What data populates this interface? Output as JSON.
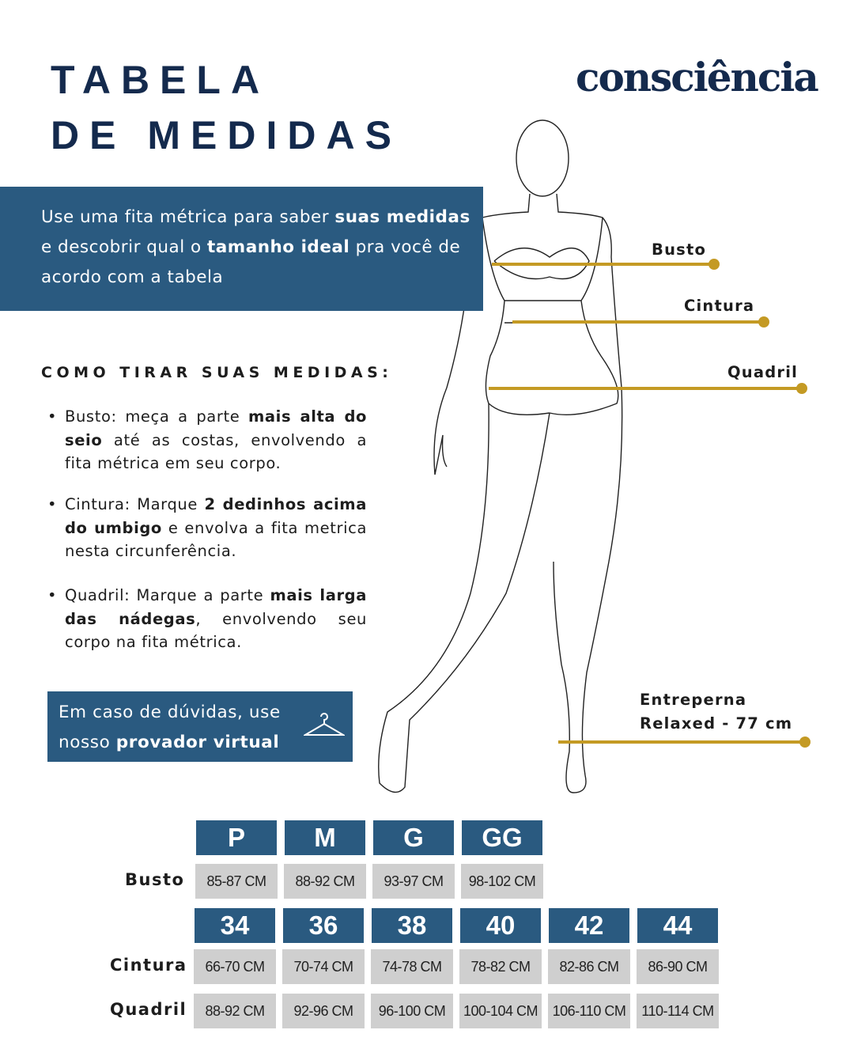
{
  "header": {
    "title_line1": "TABELA",
    "title_line2": "DE MEDIDAS",
    "logo": "consciência"
  },
  "intro": [
    {
      "t": "Use uma fita métrica para saber "
    },
    {
      "t": "suas medidas",
      "b": true
    },
    {
      "t": " e descobrir qual o "
    },
    {
      "t": "tamanho ideal",
      "b": true
    },
    {
      "t": " pra você de acordo com a tabela"
    }
  ],
  "howto": {
    "heading": "COMO TIRAR SUAS MEDIDAS:",
    "bullets": [
      [
        {
          "t": "Busto: meça a parte "
        },
        {
          "t": "mais alta do seio",
          "b": true
        },
        {
          "t": " até as costas, envolvendo a fita métrica em seu corpo."
        }
      ],
      [
        {
          "t": "Cintura: Marque "
        },
        {
          "t": "2 dedinhos acima do umbigo",
          "b": true
        },
        {
          "t": " e envolva a fita metrica nesta circunferência."
        }
      ],
      [
        {
          "t": "Quadril: Marque a parte "
        },
        {
          "t": "mais larga das nádegas",
          "b": true
        },
        {
          "t": ", envolvendo seu corpo na fita métrica."
        }
      ]
    ]
  },
  "help": [
    {
      "t": "Em caso de dúvidas, use nosso "
    },
    {
      "t": "provador virtual",
      "b": true
    }
  ],
  "help_icon": "hanger-icon",
  "figure": {
    "labels": {
      "busto": "Busto",
      "cintura": "Cintura",
      "quadril": "Quadril",
      "entreperna1": "Entreperna",
      "entreperna2": "Relaxed - 77 cm"
    }
  },
  "colors": {
    "brand_blue": "#2a5a80",
    "navy": "#142a4d",
    "gold": "#c49a24",
    "cell_gray": "#cfcfcf"
  },
  "table": {
    "busto": {
      "label": "Busto",
      "sizes": [
        "P",
        "M",
        "G",
        "GG"
      ],
      "values": [
        "85-87 CM",
        "88-92 CM",
        "93-97 CM",
        "98-102 CM"
      ]
    },
    "numeric_sizes": [
      "34",
      "36",
      "38",
      "40",
      "42",
      "44"
    ],
    "cintura": {
      "label": "Cintura",
      "values": [
        "66-70 CM",
        "70-74 CM",
        "74-78 CM",
        "78-82 CM",
        "82-86 CM",
        "86-90 CM"
      ]
    },
    "quadril": {
      "label": "Quadril",
      "values": [
        "88-92 CM",
        "92-96 CM",
        "96-100 CM",
        "100-104 CM",
        "106-110 CM",
        "110-114 CM"
      ]
    }
  }
}
